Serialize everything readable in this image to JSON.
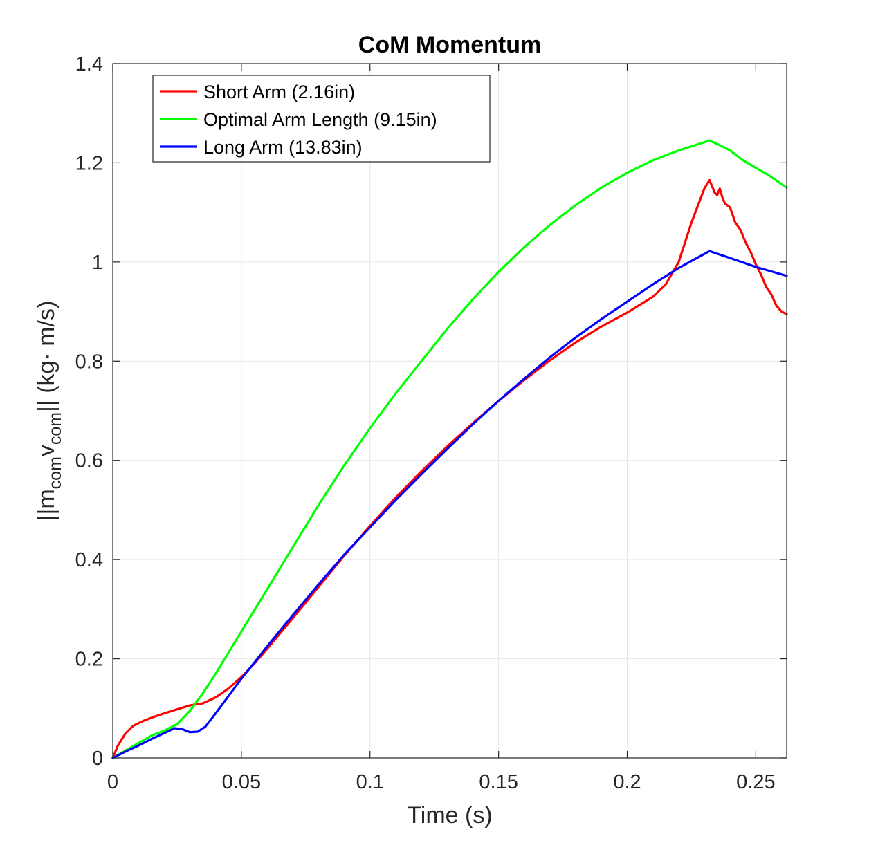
{
  "chart_data": {
    "type": "line",
    "title": "CoM Momentum",
    "xlabel": "Time (s)",
    "ylabel": {
      "prefix": "||m",
      "sub1": "com",
      "mid": "v",
      "sub2": "com",
      "suffix": "|| (kg· m/s)"
    },
    "xlim": [
      0,
      0.262
    ],
    "ylim": [
      0,
      1.4
    ],
    "xticks": [
      0,
      0.05,
      0.1,
      0.15,
      0.2,
      0.25
    ],
    "xtick_labels": [
      "0",
      "0.05",
      "0.1",
      "0.15",
      "0.2",
      "0.25"
    ],
    "yticks": [
      0,
      0.2,
      0.4,
      0.6,
      0.8,
      1,
      1.2,
      1.4
    ],
    "ytick_labels": [
      "0",
      "0.2",
      "0.4",
      "0.6",
      "0.8",
      "1",
      "1.2",
      "1.4"
    ],
    "grid": true,
    "legend_position": "top-left",
    "series": [
      {
        "name": "Short Arm (2.16in)",
        "color": "#ff0000",
        "x": [
          0,
          0.002,
          0.005,
          0.008,
          0.012,
          0.016,
          0.02,
          0.025,
          0.03,
          0.035,
          0.04,
          0.045,
          0.05,
          0.055,
          0.06,
          0.07,
          0.08,
          0.09,
          0.1,
          0.11,
          0.12,
          0.13,
          0.14,
          0.15,
          0.16,
          0.17,
          0.18,
          0.19,
          0.2,
          0.21,
          0.215,
          0.22,
          0.225,
          0.23,
          0.232,
          0.234,
          0.235,
          0.236,
          0.237,
          0.238,
          0.24,
          0.242,
          0.244,
          0.246,
          0.248,
          0.25,
          0.252,
          0.254,
          0.256,
          0.258,
          0.26,
          0.262
        ],
        "y": [
          0,
          0.025,
          0.05,
          0.065,
          0.075,
          0.083,
          0.09,
          0.098,
          0.106,
          0.11,
          0.122,
          0.14,
          0.163,
          0.19,
          0.22,
          0.282,
          0.345,
          0.408,
          0.468,
          0.525,
          0.578,
          0.628,
          0.675,
          0.72,
          0.762,
          0.802,
          0.838,
          0.87,
          0.898,
          0.93,
          0.955,
          1.0,
          1.08,
          1.148,
          1.165,
          1.14,
          1.135,
          1.148,
          1.13,
          1.118,
          1.11,
          1.08,
          1.065,
          1.04,
          1.02,
          0.995,
          0.975,
          0.95,
          0.935,
          0.912,
          0.9,
          0.895
        ]
      },
      {
        "name": "Optimal Arm Length (9.15in)",
        "color": "#00ff00",
        "x": [
          0,
          0.005,
          0.01,
          0.015,
          0.02,
          0.025,
          0.03,
          0.035,
          0.04,
          0.05,
          0.06,
          0.07,
          0.08,
          0.09,
          0.1,
          0.11,
          0.12,
          0.13,
          0.14,
          0.15,
          0.16,
          0.17,
          0.18,
          0.19,
          0.2,
          0.21,
          0.22,
          0.232,
          0.235,
          0.24,
          0.245,
          0.25,
          0.255,
          0.262
        ],
        "y": [
          0,
          0.015,
          0.03,
          0.045,
          0.055,
          0.068,
          0.095,
          0.13,
          0.17,
          0.255,
          0.34,
          0.425,
          0.51,
          0.59,
          0.665,
          0.735,
          0.8,
          0.865,
          0.925,
          0.98,
          1.03,
          1.075,
          1.115,
          1.15,
          1.18,
          1.205,
          1.225,
          1.245,
          1.238,
          1.225,
          1.205,
          1.19,
          1.175,
          1.15
        ]
      },
      {
        "name": "Long Arm (13.83in)",
        "color": "#0000ff",
        "x": [
          0,
          0.005,
          0.01,
          0.015,
          0.02,
          0.024,
          0.027,
          0.03,
          0.033,
          0.036,
          0.04,
          0.045,
          0.05,
          0.055,
          0.06,
          0.07,
          0.08,
          0.09,
          0.1,
          0.11,
          0.12,
          0.13,
          0.14,
          0.15,
          0.16,
          0.17,
          0.18,
          0.19,
          0.2,
          0.21,
          0.22,
          0.232,
          0.24,
          0.25,
          0.262
        ],
        "y": [
          0,
          0.013,
          0.025,
          0.038,
          0.05,
          0.06,
          0.058,
          0.052,
          0.053,
          0.063,
          0.09,
          0.125,
          0.16,
          0.192,
          0.225,
          0.288,
          0.35,
          0.41,
          0.465,
          0.52,
          0.572,
          0.623,
          0.673,
          0.72,
          0.765,
          0.808,
          0.848,
          0.885,
          0.92,
          0.955,
          0.988,
          1.022,
          1.008,
          0.99,
          0.972
        ]
      }
    ]
  }
}
